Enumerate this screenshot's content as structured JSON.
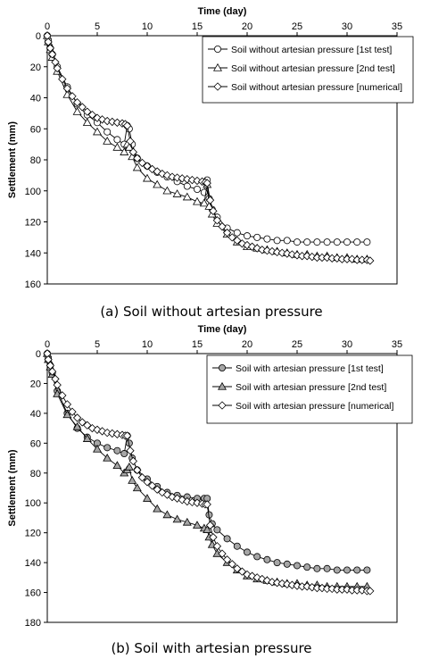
{
  "chart_data": [
    {
      "type": "line",
      "caption": "(a) Soil without artesian pressure",
      "xlabel": "Time (day)",
      "ylabel": "Settlement (mm)",
      "xlim": [
        0,
        35
      ],
      "ylim": [
        0,
        160
      ],
      "y_inverted": true,
      "x_axis_position": "top",
      "xticks": [
        0,
        5,
        10,
        15,
        20,
        25,
        30,
        35
      ],
      "yticks": [
        0,
        20,
        40,
        60,
        80,
        100,
        120,
        140,
        160
      ],
      "grid": false,
      "legend_position": "top-right",
      "series": [
        {
          "name": "Soil without artesian pressure [1st test]",
          "marker": "circle",
          "fill": "#ffffff",
          "x": [
            0,
            0.1,
            0.3,
            0.5,
            1,
            2,
            3,
            4,
            5,
            6,
            7,
            7.7,
            8,
            8.2,
            8.5,
            9,
            10,
            11,
            12,
            13,
            14,
            15,
            15.7,
            16,
            16.2,
            16.5,
            17,
            18,
            19,
            20,
            21,
            22,
            23,
            24,
            25,
            26,
            27,
            28,
            29,
            30,
            31,
            32
          ],
          "y": [
            0,
            3,
            8,
            12,
            20,
            33,
            44,
            51,
            56,
            62,
            67,
            70,
            58,
            60,
            70,
            79,
            84,
            88,
            91,
            94,
            97,
            99,
            101,
            93,
            105,
            112,
            117,
            124,
            127,
            129,
            130,
            131,
            132,
            132,
            133,
            133,
            133,
            133,
            133,
            133,
            133,
            133
          ]
        },
        {
          "name": "Soil without artesian pressure [2nd test]",
          "marker": "triangle",
          "fill": "#ffffff",
          "x": [
            0,
            0.1,
            0.3,
            0.5,
            1,
            2,
            3,
            4,
            5,
            6,
            7,
            7.7,
            8,
            8.2,
            8.5,
            9,
            10,
            11,
            12,
            13,
            14,
            15,
            15.7,
            16,
            16.2,
            16.5,
            17,
            18,
            19,
            20,
            21,
            22,
            23,
            24,
            25,
            26,
            27,
            28,
            29,
            30,
            31,
            32
          ],
          "y": [
            0,
            4,
            9,
            14,
            23,
            38,
            49,
            56,
            62,
            68,
            72,
            75,
            70,
            72,
            78,
            85,
            92,
            96,
            100,
            102,
            104,
            107,
            108,
            96,
            110,
            115,
            121,
            128,
            133,
            136,
            137,
            138,
            139,
            140,
            141,
            141,
            142,
            142,
            143,
            143,
            144,
            144
          ]
        },
        {
          "name": "Soil without artesian pressure [numerical]",
          "marker": "diamond",
          "fill": "#ffffff",
          "x": [
            0,
            0.1,
            0.3,
            0.5,
            0.8,
            1,
            1.5,
            2,
            2.5,
            3,
            3.5,
            4,
            4.5,
            5,
            5.5,
            6,
            6.5,
            7,
            7.5,
            7.8,
            8,
            8.3,
            8.6,
            9,
            9.5,
            10,
            10.5,
            11,
            11.5,
            12,
            12.5,
            13,
            13.5,
            14,
            14.5,
            15,
            15.5,
            15.8,
            16,
            16.3,
            16.6,
            17,
            17.5,
            18,
            18.5,
            19,
            19.5,
            20,
            20.5,
            21,
            21.5,
            22,
            22.5,
            23,
            23.5,
            24,
            24.5,
            25,
            25.5,
            26,
            26.5,
            27,
            27.5,
            28,
            28.5,
            29,
            29.5,
            30,
            30.5,
            31,
            31.5,
            32,
            32.3
          ],
          "y": [
            0,
            4,
            8,
            12,
            17,
            21,
            28,
            34,
            39,
            43,
            46,
            49,
            51,
            53,
            54,
            55,
            55.5,
            56,
            56.5,
            57,
            58,
            68,
            75,
            79,
            82,
            84,
            86,
            87.5,
            89,
            90,
            91,
            91.5,
            92,
            92.5,
            93,
            93.5,
            94,
            94.5,
            95,
            106,
            113,
            119,
            123,
            127,
            130,
            132,
            134,
            135,
            136,
            137,
            138,
            138.5,
            139,
            139.5,
            140,
            140.5,
            141,
            141.5,
            142,
            142,
            142.5,
            143,
            143,
            143,
            143.5,
            143.5,
            144,
            144,
            144,
            144.5,
            144.5,
            144.5,
            145
          ]
        }
      ]
    },
    {
      "type": "line",
      "caption": "(b) Soil with artesian pressure",
      "xlabel": "Time (day)",
      "ylabel": "Settlement (mm)",
      "xlim": [
        0,
        35
      ],
      "ylim": [
        0,
        180
      ],
      "y_inverted": true,
      "x_axis_position": "top",
      "xticks": [
        0,
        5,
        10,
        15,
        20,
        25,
        30,
        35
      ],
      "yticks": [
        0,
        20,
        40,
        60,
        80,
        100,
        120,
        140,
        160,
        180
      ],
      "grid": false,
      "legend_position": "top-right",
      "series": [
        {
          "name": "Soil with artesian pressure [1st test]",
          "marker": "circle",
          "fill": "#a6a6a6",
          "x": [
            0,
            0.1,
            0.3,
            0.5,
            1,
            2,
            3,
            4,
            5,
            6,
            7,
            7.7,
            8,
            8.2,
            8.5,
            9,
            10,
            11,
            12,
            13,
            14,
            15,
            15.7,
            16,
            16.2,
            16.5,
            17,
            18,
            19,
            20,
            21,
            22,
            23,
            24,
            25,
            26,
            27,
            28,
            29,
            30,
            31,
            32
          ],
          "y": [
            0,
            3,
            8,
            13,
            25,
            40,
            50,
            56,
            60,
            63,
            65,
            67,
            55,
            60,
            70,
            78,
            84,
            89,
            93,
            95,
            96,
            97,
            97,
            97,
            108,
            114,
            118,
            124,
            129,
            133,
            136,
            138,
            140,
            141,
            142,
            143,
            144,
            144,
            145,
            145,
            145,
            145
          ]
        },
        {
          "name": "Soil with artesian pressure [2nd test]",
          "marker": "triangle",
          "fill": "#a6a6a6",
          "x": [
            0,
            0.1,
            0.3,
            0.5,
            1,
            2,
            3,
            4,
            5,
            6,
            7,
            7.7,
            8,
            8.2,
            8.5,
            9,
            10,
            11,
            12,
            13,
            14,
            15,
            15.7,
            16,
            16.2,
            16.5,
            17,
            18,
            19,
            20,
            21,
            22,
            23,
            24,
            25,
            26,
            27,
            28,
            29,
            30,
            31,
            32
          ],
          "y": [
            0,
            4,
            9,
            14,
            27,
            41,
            49,
            57,
            64,
            70,
            75,
            80,
            78,
            76,
            85,
            90,
            97,
            104,
            108,
            111,
            113,
            115,
            117,
            118,
            123,
            128,
            134,
            140,
            145,
            149,
            151,
            152,
            153,
            154,
            154,
            155,
            155,
            156,
            156,
            156,
            156,
            156
          ]
        },
        {
          "name": "Soil with artesian pressure [numerical]",
          "marker": "diamond",
          "fill": "#ffffff",
          "x": [
            0,
            0.1,
            0.3,
            0.5,
            0.8,
            1,
            1.5,
            2,
            2.5,
            3,
            3.5,
            4,
            4.5,
            5,
            5.5,
            6,
            6.5,
            7,
            7.5,
            7.8,
            8,
            8.3,
            8.6,
            9,
            9.5,
            10,
            10.5,
            11,
            11.5,
            12,
            12.5,
            13,
            13.5,
            14,
            14.5,
            15,
            15.5,
            15.8,
            16,
            16.3,
            16.6,
            17,
            17.5,
            18,
            18.5,
            19,
            19.5,
            20,
            20.5,
            21,
            21.5,
            22,
            22.5,
            23,
            23.5,
            24,
            24.5,
            25,
            25.5,
            26,
            26.5,
            27,
            27.5,
            28,
            28.5,
            29,
            29.5,
            30,
            30.5,
            31,
            31.5,
            32,
            32.3
          ],
          "y": [
            0,
            4,
            8,
            12,
            17,
            21,
            28,
            34,
            39,
            43,
            46,
            48,
            50,
            51,
            52,
            53,
            53.5,
            54,
            54.5,
            55,
            55,
            65,
            72,
            78,
            83,
            86,
            88.5,
            91,
            93,
            94.5,
            96,
            97,
            98,
            99,
            99.5,
            100,
            100.5,
            101,
            101,
            115,
            123,
            129,
            134,
            138,
            141,
            144,
            146,
            148,
            149,
            150,
            151,
            152,
            153,
            153.5,
            154,
            154.5,
            155,
            155.5,
            156,
            156,
            156.5,
            157,
            157,
            157.5,
            157.5,
            158,
            158,
            158,
            158.5,
            158.5,
            158.5,
            159,
            159
          ]
        }
      ]
    }
  ]
}
